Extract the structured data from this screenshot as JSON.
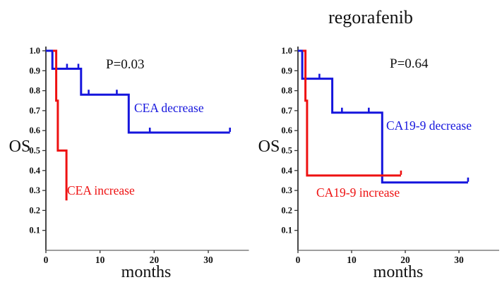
{
  "title": "regorafenib",
  "chart_data": [
    {
      "type": "line",
      "subtype": "kaplan-meier-step",
      "panel": "CEA",
      "p_value": "P=0.03",
      "xlabel": "months",
      "ylabel": "OS",
      "xlim": [
        0,
        37.5
      ],
      "ylim": [
        0,
        1.0
      ],
      "xticks": [
        0,
        10,
        20,
        30
      ],
      "yticks": [
        "1.0",
        "0.9",
        "0.8",
        "0.7",
        "0.6",
        "0.5",
        "0.4",
        "0.3",
        "0.2",
        "0.1"
      ],
      "grid": false,
      "legend": "inline-labels",
      "series": [
        {
          "name": "CEA decrease",
          "color": "#1515dd",
          "steps": [
            [
              0,
              1.0
            ],
            [
              1.2,
              1.0
            ],
            [
              1.2,
              0.91
            ],
            [
              6.5,
              0.91
            ],
            [
              6.5,
              0.78
            ],
            [
              15.3,
              0.78
            ],
            [
              15.3,
              0.59
            ],
            [
              34,
              0.59
            ]
          ],
          "censor_marks": [
            [
              3.9,
              0.91
            ],
            [
              6.0,
              0.91
            ],
            [
              7.9,
              0.78
            ],
            [
              13.1,
              0.78
            ],
            [
              19.2,
              0.59
            ],
            [
              34,
              0.59
            ]
          ]
        },
        {
          "name": "CEA increase",
          "color": "#ee1111",
          "steps": [
            [
              1.3,
              1.0
            ],
            [
              1.9,
              1.0
            ],
            [
              1.9,
              0.75
            ],
            [
              2.2,
              0.75
            ],
            [
              2.2,
              0.5
            ],
            [
              3.8,
              0.5
            ],
            [
              3.8,
              0.25
            ]
          ],
          "censor_marks": []
        }
      ]
    },
    {
      "type": "line",
      "subtype": "kaplan-meier-step",
      "panel": "CA19-9",
      "p_value": "P=0.64",
      "xlabel": "months",
      "ylabel": "OS",
      "xlim": [
        0,
        37.5
      ],
      "ylim": [
        0,
        1.0
      ],
      "xticks": [
        0,
        10,
        20,
        30
      ],
      "yticks": [
        "1.0",
        "0.9",
        "0.8",
        "0.7",
        "0.6",
        "0.5",
        "0.4",
        "0.3",
        "0.2",
        "0.1"
      ],
      "grid": false,
      "legend": "inline-labels",
      "series": [
        {
          "name": "CA19-9 decrease",
          "color": "#1515dd",
          "steps": [
            [
              0,
              1.0
            ],
            [
              0.8,
              1.0
            ],
            [
              0.8,
              0.86
            ],
            [
              6.4,
              0.86
            ],
            [
              6.4,
              0.69
            ],
            [
              15.7,
              0.69
            ],
            [
              15.7,
              0.34
            ],
            [
              31.7,
              0.34
            ]
          ],
          "censor_marks": [
            [
              4.0,
              0.86
            ],
            [
              8.2,
              0.69
            ],
            [
              13.2,
              0.69
            ],
            [
              31.7,
              0.34
            ]
          ]
        },
        {
          "name": "CA19-9 increase",
          "color": "#ee1111",
          "steps": [
            [
              0.9,
              1.0
            ],
            [
              1.4,
              1.0
            ],
            [
              1.4,
              0.75
            ],
            [
              1.7,
              0.75
            ],
            [
              1.7,
              0.375
            ],
            [
              19.2,
              0.375
            ]
          ],
          "censor_marks": [
            [
              19.2,
              0.375
            ]
          ]
        }
      ]
    }
  ]
}
